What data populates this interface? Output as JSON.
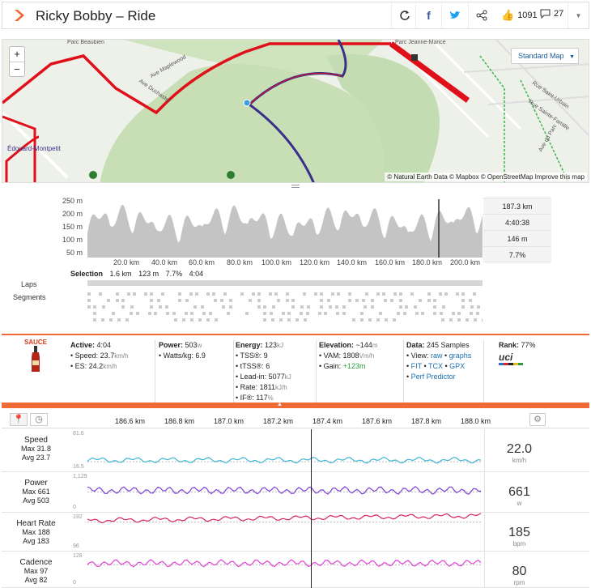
{
  "header": {
    "title": "Ricky Bobby – Ride",
    "kudos": "1091",
    "comments": "27"
  },
  "map": {
    "style_button": "Standard Map",
    "attribution": "© Natural Earth Data © Mapbox © OpenStreetMap Improve this map",
    "labels": [
      "Parc Beaubien",
      "Ave Maplewood",
      "Ave Duchastel",
      "Édouard-Montpetit",
      "Parc Jeanne-Mance",
      "Rue Saint-Urbain",
      "Rue Sainte-Famille",
      "Ave du Parc"
    ]
  },
  "elevation": {
    "ylabels": [
      "250 m",
      "200 m",
      "150 m",
      "100 m",
      "50 m"
    ],
    "xlabels": [
      "20.0 km",
      "40.0 km",
      "60.0 km",
      "80.0 km",
      "100.0 km",
      "120.0 km",
      "140.0 km",
      "160.0 km",
      "180.0 km",
      "200.0 km"
    ],
    "summary": [
      "187.3 km",
      "4:40:38",
      "146 m",
      "7.7%"
    ],
    "selection_label": "Selection",
    "selection": [
      "1.6 km",
      "123 m",
      "7.7%",
      "4:04"
    ],
    "laps_label": "Laps",
    "segments_label": "Segments"
  },
  "stats": {
    "sauce": "SAUCE",
    "active": {
      "label": "Active:",
      "value": "4:04",
      "speed": "Speed: 23.7",
      "speed_unit": "km/h",
      "es": "ES: 24.2",
      "es_unit": "km/h"
    },
    "power": {
      "label": "Power:",
      "value": "503",
      "unit": "w",
      "wkg": "Watts/kg: 6.9"
    },
    "energy": {
      "label": "Energy:",
      "value": "123",
      "unit": "kJ",
      "tss": "TSS®: 9",
      "rtss": "tTSS®: 6",
      "leadin": "Lead-in: 5077",
      "leadin_unit": "kJ",
      "rate": "Rate: 1811",
      "rate_unit": "kJ/h",
      "if": "IF®: 117",
      "if_unit": "%"
    },
    "elevation": {
      "label": "Elevation:",
      "value": "~144",
      "unit": "m",
      "vam": "VAM: 1808",
      "vam_unit": "Vm/h",
      "gain": "Gain:",
      "gain_val": "+123m"
    },
    "data": {
      "label": "Data:",
      "value": "245 Samples",
      "view": "View:",
      "raw": "raw",
      "graphs": "graphs",
      "fit": "FIT",
      "tcx": "TCX",
      "gpx": "GPX",
      "perf": "Perf Predictor"
    },
    "rank": {
      "label": "Rank:",
      "value": "77%",
      "badge": "uci"
    }
  },
  "timeline": [
    "186.6 km",
    "186.8 km",
    "187.0 km",
    "187.2 km",
    "187.4 km",
    "187.6 km",
    "187.8 km",
    "188.0 km"
  ],
  "streams": [
    {
      "name": "Speed",
      "max": "Max 31.8",
      "avg": "Avg 23.7",
      "value": "22.0",
      "unit": "km/h",
      "top": "81.6",
      "bottom": "16.5",
      "color": "#3fb5d6"
    },
    {
      "name": "Power",
      "max": "Max 661",
      "avg": "Avg 503",
      "value": "661",
      "unit": "w",
      "top": "1,129",
      "bottom": "0",
      "color": "#7b3fd6"
    },
    {
      "name": "Heart Rate",
      "max": "Max 188",
      "avg": "Avg 183",
      "value": "185",
      "unit": "bpm",
      "top": "192",
      "bottom": "96",
      "color": "#d6245a"
    },
    {
      "name": "Cadence",
      "max": "Max 97",
      "avg": "Avg 82",
      "value": "80",
      "unit": "rpm",
      "top": "128",
      "bottom": "0",
      "color": "#e03fd6"
    }
  ]
}
